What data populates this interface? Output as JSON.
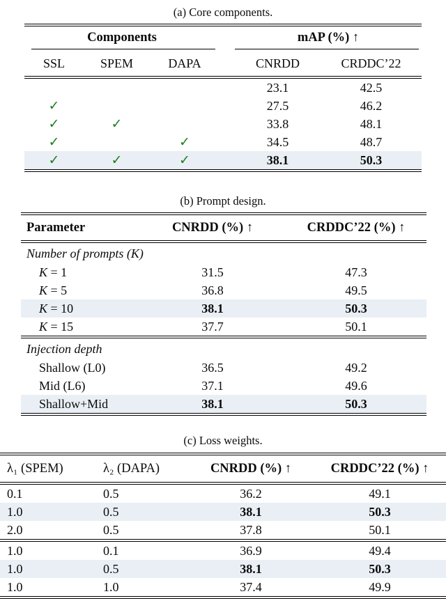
{
  "colors": {
    "highlight_row": "#e9eff5",
    "check_green": "#1e7e1e"
  },
  "captions": {
    "a": "(a) Core components.",
    "b": "(b) Prompt design.",
    "c": "(c) Loss weights."
  },
  "table_a": {
    "group_headers": {
      "components": "Components",
      "map": "mAP (%) ↑"
    },
    "columns": [
      "SSL",
      "SPEM",
      "DAPA",
      "CNRDD",
      "CRDDC’22"
    ],
    "check_glyph": "✓",
    "rows": [
      {
        "ssl": false,
        "spem": false,
        "dapa": false,
        "cnrdd": "23.1",
        "crddc": "42.5",
        "highlight": false
      },
      {
        "ssl": true,
        "spem": false,
        "dapa": false,
        "cnrdd": "27.5",
        "crddc": "46.2",
        "highlight": false
      },
      {
        "ssl": true,
        "spem": true,
        "dapa": false,
        "cnrdd": "33.8",
        "crddc": "48.1",
        "highlight": false
      },
      {
        "ssl": true,
        "spem": false,
        "dapa": true,
        "cnrdd": "34.5",
        "crddc": "48.7",
        "highlight": false
      },
      {
        "ssl": true,
        "spem": true,
        "dapa": true,
        "cnrdd": "38.1",
        "crddc": "50.3",
        "highlight": true
      }
    ]
  },
  "table_b": {
    "columns": [
      "Parameter",
      "CNRDD (%) ↑",
      "CRDDC’22 (%) ↑"
    ],
    "sections": [
      {
        "title": "Number of prompts (K)",
        "rows": [
          {
            "param_var": "K",
            "param_text": " = 1",
            "cnrdd": "31.5",
            "crddc": "47.3",
            "highlight": false
          },
          {
            "param_var": "K",
            "param_text": " = 5",
            "cnrdd": "36.8",
            "crddc": "49.5",
            "highlight": false
          },
          {
            "param_var": "K",
            "param_text": " = 10",
            "cnrdd": "38.1",
            "crddc": "50.3",
            "highlight": true
          },
          {
            "param_var": "K",
            "param_text": " = 15",
            "cnrdd": "37.7",
            "crddc": "50.1",
            "highlight": false
          }
        ]
      },
      {
        "title": "Injection depth",
        "rows": [
          {
            "param_var": "",
            "param_text": "Shallow (L0)",
            "cnrdd": "36.5",
            "crddc": "49.2",
            "highlight": false
          },
          {
            "param_var": "",
            "param_text": "Mid (L6)",
            "cnrdd": "37.1",
            "crddc": "49.6",
            "highlight": false
          },
          {
            "param_var": "",
            "param_text": "Shallow+Mid",
            "cnrdd": "38.1",
            "crddc": "50.3",
            "highlight": true
          }
        ]
      }
    ]
  },
  "table_c": {
    "columns": [
      "λ₁ (SPEM)",
      "λ₂ (DAPA)",
      "CNRDD (%) ↑",
      "CRDDC’22 (%) ↑"
    ],
    "groups": [
      {
        "rows": [
          {
            "lambda1": "0.1",
            "lambda2": "0.5",
            "cnrdd": "36.2",
            "crddc": "49.1",
            "highlight": false
          },
          {
            "lambda1": "1.0",
            "lambda2": "0.5",
            "cnrdd": "38.1",
            "crddc": "50.3",
            "highlight": true
          },
          {
            "lambda1": "2.0",
            "lambda2": "0.5",
            "cnrdd": "37.8",
            "crddc": "50.1",
            "highlight": false
          }
        ]
      },
      {
        "rows": [
          {
            "lambda1": "1.0",
            "lambda2": "0.1",
            "cnrdd": "36.9",
            "crddc": "49.4",
            "highlight": false
          },
          {
            "lambda1": "1.0",
            "lambda2": "0.5",
            "cnrdd": "38.1",
            "crddc": "50.3",
            "highlight": true
          },
          {
            "lambda1": "1.0",
            "lambda2": "1.0",
            "cnrdd": "37.4",
            "crddc": "49.9",
            "highlight": false
          }
        ]
      }
    ]
  }
}
